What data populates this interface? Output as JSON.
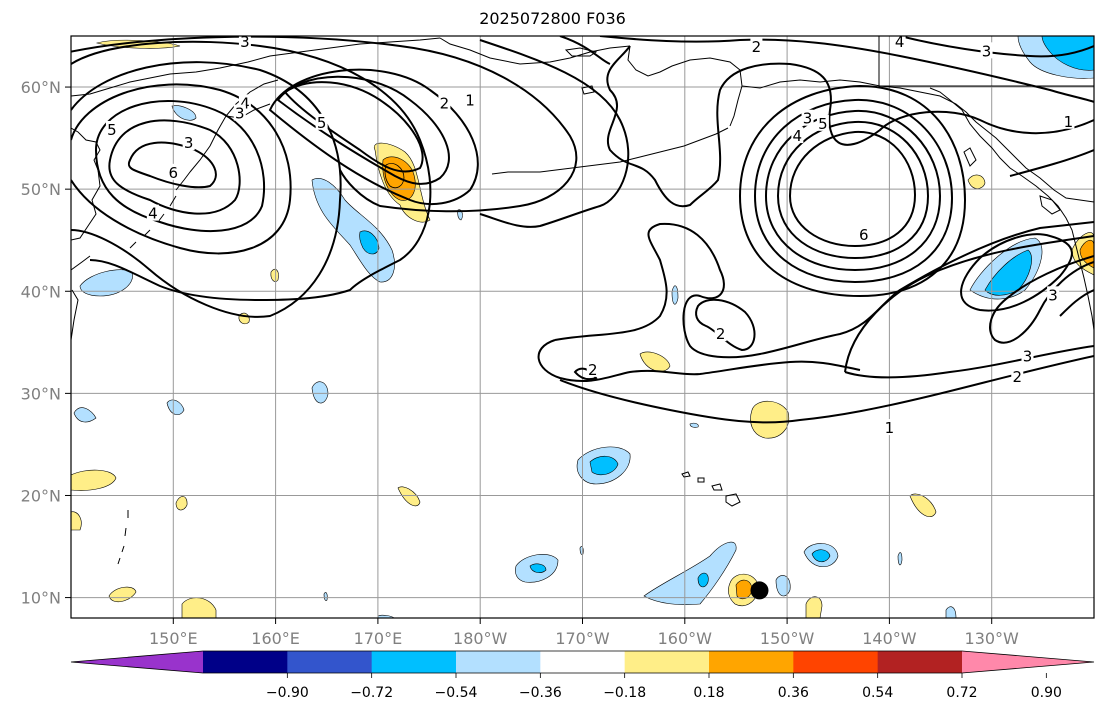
{
  "title": "2025072800 F036",
  "map": {
    "lon_range": [
      140,
      240
    ],
    "lat_range": [
      8,
      65
    ],
    "grid": true,
    "lon_ticks": [
      {
        "value": 150,
        "label": "150°E"
      },
      {
        "value": 160,
        "label": "160°E"
      },
      {
        "value": 170,
        "label": "170°E"
      },
      {
        "value": 180,
        "label": "180°W"
      },
      {
        "value": 190,
        "label": "170°W"
      },
      {
        "value": 200,
        "label": "160°W"
      },
      {
        "value": 210,
        "label": "150°W"
      },
      {
        "value": 220,
        "label": "140°W"
      },
      {
        "value": 230,
        "label": "130°W"
      }
    ],
    "lat_ticks": [
      {
        "value": 10,
        "label": "10°N"
      },
      {
        "value": 20,
        "label": "20°N"
      },
      {
        "value": 30,
        "label": "30°N"
      },
      {
        "value": 40,
        "label": "40°N"
      },
      {
        "value": 50,
        "label": "50°N"
      },
      {
        "value": 60,
        "label": "60°N"
      }
    ],
    "contour_labels": [
      {
        "text": "3",
        "lon": 157,
        "lat": 64.4
      },
      {
        "text": "2",
        "lon": 207,
        "lat": 63.9
      },
      {
        "text": "4",
        "lon": 221,
        "lat": 64.4
      },
      {
        "text": "3",
        "lon": 229.5,
        "lat": 63.5
      },
      {
        "text": "5",
        "lon": 144,
        "lat": 55.8
      },
      {
        "text": "3",
        "lon": 151.5,
        "lat": 54.5
      },
      {
        "text": "6",
        "lon": 150,
        "lat": 51.6
      },
      {
        "text": "4",
        "lon": 148,
        "lat": 47.6
      },
      {
        "text": "4",
        "lon": 157,
        "lat": 58.4
      },
      {
        "text": "3",
        "lon": 156.5,
        "lat": 57.4
      },
      {
        "text": "5",
        "lon": 164.5,
        "lat": 56.5
      },
      {
        "text": "2",
        "lon": 176.5,
        "lat": 58.4
      },
      {
        "text": "1",
        "lon": 179,
        "lat": 58.7
      },
      {
        "text": "3",
        "lon": 212,
        "lat": 56.9
      },
      {
        "text": "4",
        "lon": 211,
        "lat": 55.2
      },
      {
        "text": "5",
        "lon": 213.5,
        "lat": 56.4
      },
      {
        "text": "6",
        "lon": 217.5,
        "lat": 45.5
      },
      {
        "text": "1",
        "lon": 237.5,
        "lat": 56.6
      },
      {
        "text": "3",
        "lon": 236,
        "lat": 39.6
      },
      {
        "text": "2",
        "lon": 203.5,
        "lat": 35.8
      },
      {
        "text": "2",
        "lon": 191,
        "lat": 32.3
      },
      {
        "text": "3",
        "lon": 233.5,
        "lat": 33.6
      },
      {
        "text": "2",
        "lon": 232.5,
        "lat": 31.6
      },
      {
        "text": "1",
        "lon": 220,
        "lat": 26.6
      }
    ],
    "marker": {
      "name": "black-dot",
      "lon": 207.3,
      "lat": 10.7
    },
    "fill_colors": {
      "pos_018_036": "#ffee88",
      "pos_036_054": "#ffa500",
      "neg_018_036": "#b3e0ff",
      "neg_036_054": "#00bfff"
    }
  },
  "colorbar": {
    "colors": [
      "#9933cc",
      "#000088",
      "#3355cc",
      "#00bfff",
      "#b3e0ff",
      "#ffffff",
      "#ffee88",
      "#ffa500",
      "#ff4400",
      "#b22222",
      "#ff88aa"
    ],
    "tick_labels": [
      "−0.90",
      "−0.72",
      "−0.54",
      "−0.36",
      "−0.18",
      "0.18",
      "0.36",
      "0.54",
      "0.72",
      "0.90"
    ]
  }
}
